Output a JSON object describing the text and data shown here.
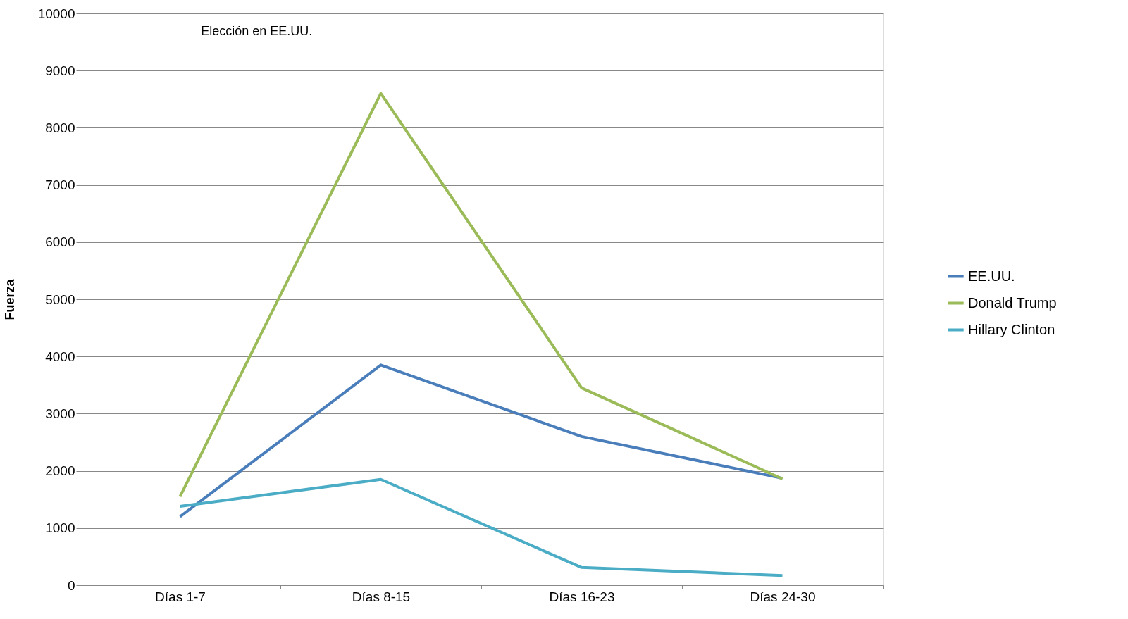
{
  "chart_data": {
    "type": "line",
    "title": "Elección en EE.UU.",
    "ylabel": "Fuerza",
    "categories": [
      "Días 1-7",
      "Días 8-15",
      "Días 16-23",
      "Días 24-30"
    ],
    "series": [
      {
        "name": "EE.UU.",
        "color": "#4a7ebb",
        "values": [
          1200,
          3850,
          2600,
          1870
        ]
      },
      {
        "name": "Donald Trump",
        "color": "#9bbb59",
        "values": [
          1550,
          8600,
          3450,
          1860
        ]
      },
      {
        "name": "Hillary  Clinton",
        "color": "#4bacc6",
        "values": [
          1380,
          1850,
          310,
          170
        ]
      }
    ],
    "ylim": [
      0,
      10000
    ],
    "yticks": [
      0,
      1000,
      2000,
      3000,
      4000,
      5000,
      6000,
      7000,
      8000,
      9000,
      10000
    ],
    "grid": "y",
    "legend": "right",
    "marker": "none",
    "line_style": "solid"
  }
}
